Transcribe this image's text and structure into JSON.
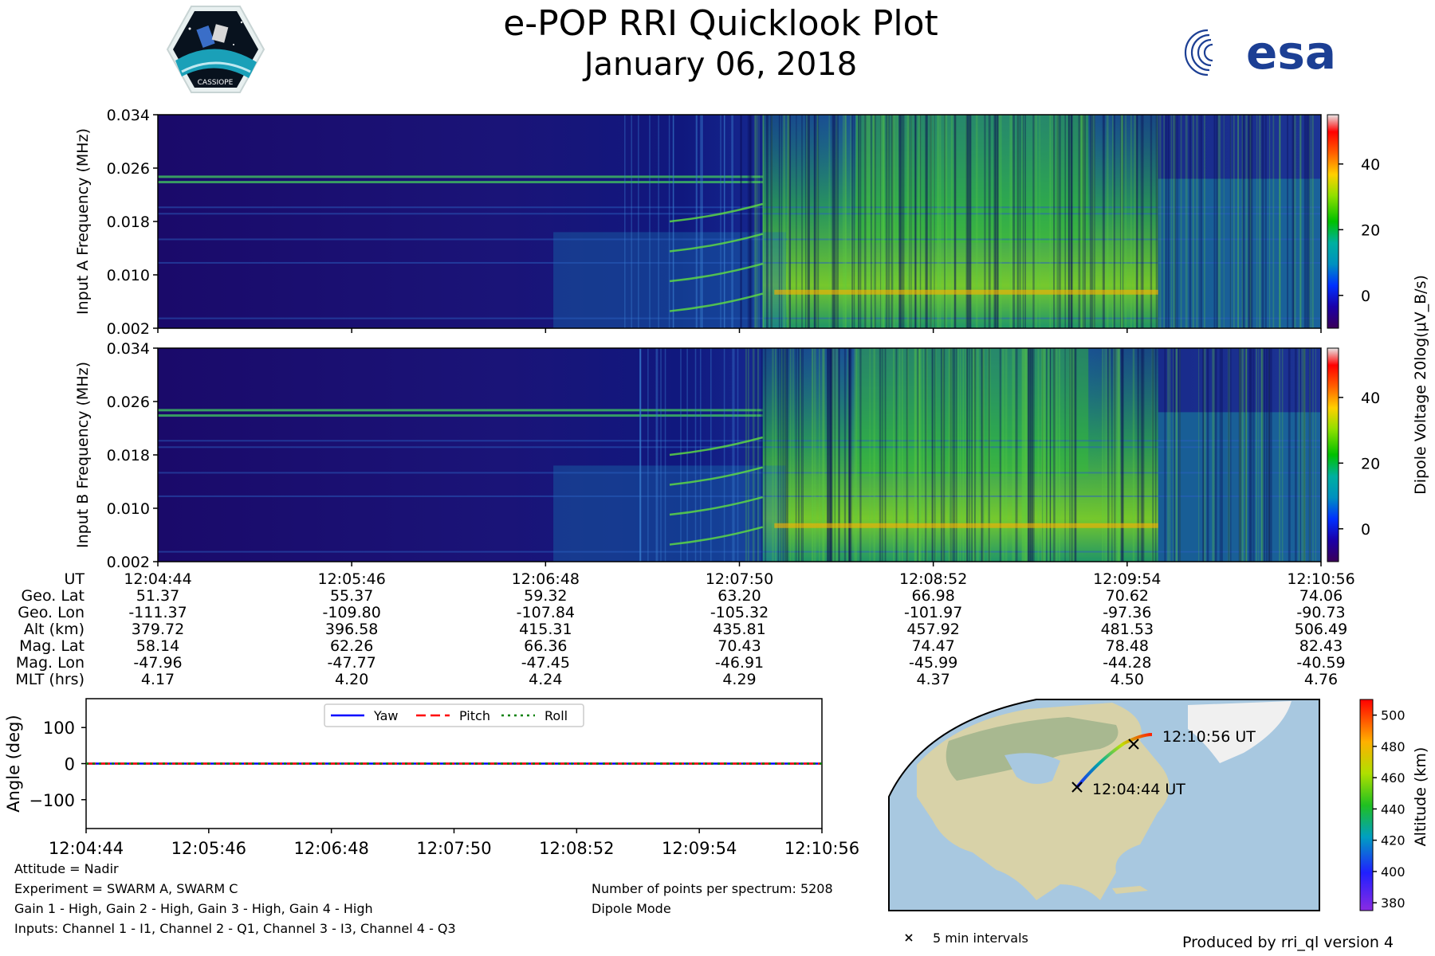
{
  "header": {
    "title": "e-POP RRI Quicklook Plot",
    "subtitle": "January 06, 2018",
    "logo_left": "CASSIOPE",
    "logo_right": "esa"
  },
  "chart_data": [
    {
      "type": "heatmap",
      "ylabel": "Input A Frequency (MHz)",
      "yticks": [
        "0.002",
        "0.010",
        "0.018",
        "0.026",
        "0.034"
      ],
      "ylim": [
        0.002,
        0.034
      ]
    },
    {
      "type": "heatmap",
      "ylabel": "Input B Frequency (MHz)",
      "yticks": [
        "0.002",
        "0.010",
        "0.018",
        "0.026",
        "0.034"
      ],
      "ylim": [
        0.002,
        0.034
      ]
    },
    {
      "type": "colorbar",
      "label": "Dipole Voltage 20log(μV_B/s)",
      "ticks": [
        "0",
        "20",
        "40"
      ],
      "range": [
        -10,
        55
      ],
      "colors": [
        "#3b0058",
        "#1b00a8",
        "#0030ff",
        "#0090c0",
        "#00b0a0",
        "#00c000",
        "#90e000",
        "#ffd000",
        "#ff6000",
        "#ff0000",
        "#e0e0e0"
      ]
    },
    {
      "type": "line",
      "ylabel": "Angle (deg)",
      "yticks": [
        "100",
        "0",
        "−100"
      ],
      "ylim": [
        -180,
        180
      ],
      "x": [
        "12:04:44",
        "12:05:46",
        "12:06:48",
        "12:07:50",
        "12:08:52",
        "12:09:54",
        "12:10:56"
      ],
      "series": [
        {
          "name": "Yaw",
          "color": "#0000ff",
          "values": [
            0,
            0,
            0,
            0,
            0,
            0,
            0
          ]
        },
        {
          "name": "Pitch",
          "color": "#ff0000",
          "values": [
            0,
            0,
            0,
            0,
            0,
            0,
            0
          ]
        },
        {
          "name": "Roll",
          "color": "#008000",
          "values": [
            0,
            0,
            0,
            0,
            0,
            0,
            0
          ]
        }
      ],
      "legend": "top-center"
    },
    {
      "type": "map",
      "track_start_label": "12:04:44 UT",
      "track_end_label": "12:10:56 UT",
      "legend_marker_label": "5 min intervals"
    },
    {
      "type": "colorbar",
      "label": "Altitude (km)",
      "ticks": [
        "380",
        "400",
        "420",
        "440",
        "460",
        "480",
        "500"
      ],
      "range": [
        375,
        510
      ]
    }
  ],
  "ephemeris": {
    "labels": [
      "UT",
      "Geo. Lat",
      "Geo. Lon",
      "Alt (km)",
      "Mag. Lat",
      "Mag. Lon",
      "MLT (hrs)"
    ],
    "columns": [
      {
        "UT": "12:04:44",
        "GeoLat": "51.37",
        "GeoLon": "-111.37",
        "Alt": "379.72",
        "MagLat": "58.14",
        "MagLon": "-47.96",
        "MLT": "4.17"
      },
      {
        "UT": "12:05:46",
        "GeoLat": "55.37",
        "GeoLon": "-109.80",
        "Alt": "396.58",
        "MagLat": "62.26",
        "MagLon": "-47.77",
        "MLT": "4.20"
      },
      {
        "UT": "12:06:48",
        "GeoLat": "59.32",
        "GeoLon": "-107.84",
        "Alt": "415.31",
        "MagLat": "66.36",
        "MagLon": "-47.45",
        "MLT": "4.24"
      },
      {
        "UT": "12:07:50",
        "GeoLat": "63.20",
        "GeoLon": "-105.32",
        "Alt": "435.81",
        "MagLat": "70.43",
        "MagLon": "-46.91",
        "MLT": "4.29"
      },
      {
        "UT": "12:08:52",
        "GeoLat": "66.98",
        "GeoLon": "-101.97",
        "Alt": "457.92",
        "MagLat": "74.47",
        "MagLon": "-45.99",
        "MLT": "4.37"
      },
      {
        "UT": "12:09:54",
        "GeoLat": "70.62",
        "GeoLon": "-97.36",
        "Alt": "481.53",
        "MagLat": "78.48",
        "MagLon": "-44.28",
        "MLT": "4.50"
      },
      {
        "UT": "12:10:56",
        "GeoLat": "74.06",
        "GeoLon": "-90.73",
        "Alt": "506.49",
        "MagLat": "82.43",
        "MagLon": "-40.59",
        "MLT": "4.76"
      }
    ]
  },
  "notes": {
    "attitude": "Attitude = Nadir",
    "experiment": "Experiment = SWARM A, SWARM C",
    "gain": "Gain 1 - High, Gain 2 - High, Gain 3 - High, Gain 4 - High",
    "inputs": "Inputs: Channel 1 - I1, Channel 2 - Q1, Channel 3 - I3, Channel 4 - Q3",
    "points": "Number of points per spectrum: 5208",
    "mode": "Dipole Mode",
    "produced": "Produced by rri_ql version 4"
  }
}
